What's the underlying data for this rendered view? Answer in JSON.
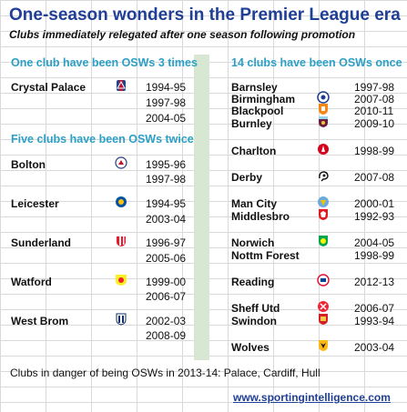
{
  "title": "One-season wonders in the Premier League era",
  "subtitle": "Clubs immediately relegated after one season following promotion",
  "sections": {
    "three_times": "One club have been OSWs 3 times",
    "twice": "Five clubs have been OSWs twice",
    "once": "14 clubs have been OSWs once"
  },
  "clubs": {
    "crystal_palace": {
      "name": "Crystal Palace",
      "seasons": [
        "1994-95",
        "1997-98",
        "2004-05"
      ]
    },
    "bolton": {
      "name": "Bolton",
      "seasons": [
        "1995-96",
        "1997-98"
      ]
    },
    "leicester": {
      "name": "Leicester",
      "seasons": [
        "1994-95",
        "2003-04"
      ]
    },
    "sunderland": {
      "name": "Sunderland",
      "seasons": [
        "1996-97",
        "2005-06"
      ]
    },
    "watford": {
      "name": "Watford",
      "seasons": [
        "1999-00",
        "2006-07"
      ]
    },
    "west_brom": {
      "name": "West Brom",
      "seasons": [
        "2002-03",
        "2008-09"
      ]
    },
    "barnsley": {
      "name": "Barnsley",
      "season": "1997-98"
    },
    "birmingham": {
      "name": "Birmingham",
      "season": "2007-08"
    },
    "blackpool": {
      "name": "Blackpool",
      "season": "2010-11"
    },
    "burnley": {
      "name": "Burnley",
      "season": "2009-10"
    },
    "charlton": {
      "name": "Charlton",
      "season": "1998-99"
    },
    "derby": {
      "name": "Derby",
      "season": "2007-08"
    },
    "man_city": {
      "name": "Man City",
      "season": "2000-01"
    },
    "middlesbro": {
      "name": "Middlesbro",
      "season": "1992-93"
    },
    "norwich": {
      "name": "Norwich",
      "season": "2004-05"
    },
    "nottm_forest": {
      "name": "Nottm Forest",
      "season": "1998-99"
    },
    "reading": {
      "name": "Reading",
      "season": "2012-13"
    },
    "sheff_utd": {
      "name": "Sheff Utd",
      "season": "2006-07"
    },
    "swindon": {
      "name": "Swindon",
      "season": "1993-94"
    },
    "wolves": {
      "name": "Wolves",
      "season": "2003-04"
    }
  },
  "footnote": "Clubs in danger of being OSWs in 2013-14: Palace, Cardiff, Hull",
  "link": "www.sportingintelligence.com",
  "colors": {
    "title": "#1f3e95",
    "section": "#2b9fc6",
    "divider": "#d7e7d2",
    "link": "#1f3e95"
  }
}
